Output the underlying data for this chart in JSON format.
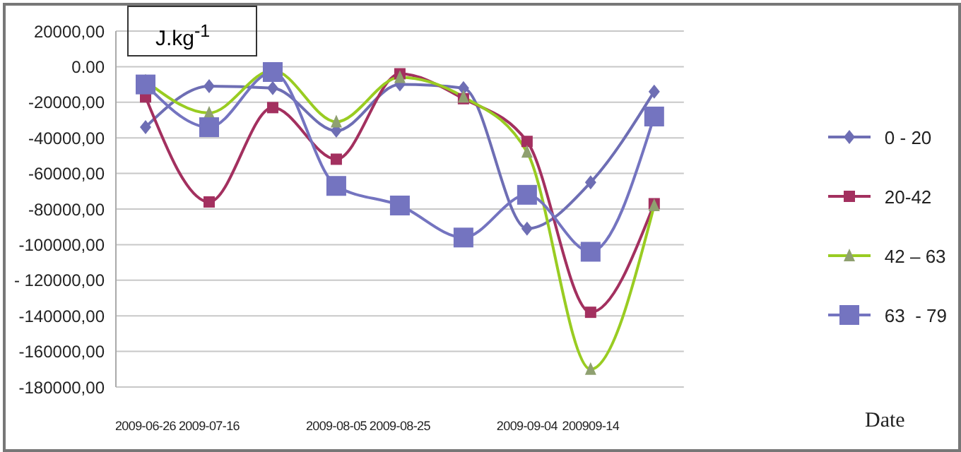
{
  "chart_data": {
    "type": "line",
    "ylabel": "J.kg$^{-1}$",
    "annotations": [
      "Date"
    ],
    "categories": [
      "2009-06-26",
      "2009-07-16",
      null,
      "2009-08-05",
      "2009-08-25",
      null,
      "2009-09-04",
      "200909-14",
      null
    ],
    "ylim": [
      -180000,
      20000
    ],
    "yticks": [
      {
        "value": 20000,
        "label": "20000,00"
      },
      {
        "value": 0,
        "label": "0.00"
      },
      {
        "value": -20000,
        "label": "-20000,00"
      },
      {
        "value": -40000,
        "label": "-40000,00"
      },
      {
        "value": -60000,
        "label": "-60000,00"
      },
      {
        "value": -80000,
        "label": "-80000,00"
      },
      {
        "value": -100000,
        "label": "-100000,00"
      },
      {
        "value": -120000,
        "label": "- 120000,00"
      },
      {
        "value": -140000,
        "label": "-140000,00"
      },
      {
        "value": -160000,
        "label": "-160000,00"
      },
      {
        "value": -180000,
        "label": "-180000,00"
      }
    ],
    "grid": "y",
    "legend": "right",
    "series": [
      {
        "name": "0 - 20",
        "color": "#6e6eb4",
        "marker": "diamond",
        "values": [
          -34000,
          -11000,
          -12000,
          -36000,
          -10000,
          -12000,
          -91000,
          -65000,
          -14000
        ]
      },
      {
        "name": "20-42",
        "color": "#a3305f",
        "marker": "square",
        "values": [
          -17000,
          -76000,
          -23000,
          -52000,
          -4000,
          -18000,
          -42000,
          -138000,
          -77000
        ]
      },
      {
        "name": "42 – 63",
        "color": "#99cc22",
        "marker": "triangle",
        "values": [
          -8000,
          -26000,
          -2000,
          -31000,
          -6000,
          -17000,
          -48000,
          -170000,
          -78000
        ]
      },
      {
        "name": "63  - 79",
        "color": "#7474c0",
        "marker": "square",
        "values": [
          -10000,
          -34000,
          -3000,
          -67000,
          -78000,
          -96000,
          -72000,
          -104000,
          -28000
        ]
      }
    ]
  }
}
